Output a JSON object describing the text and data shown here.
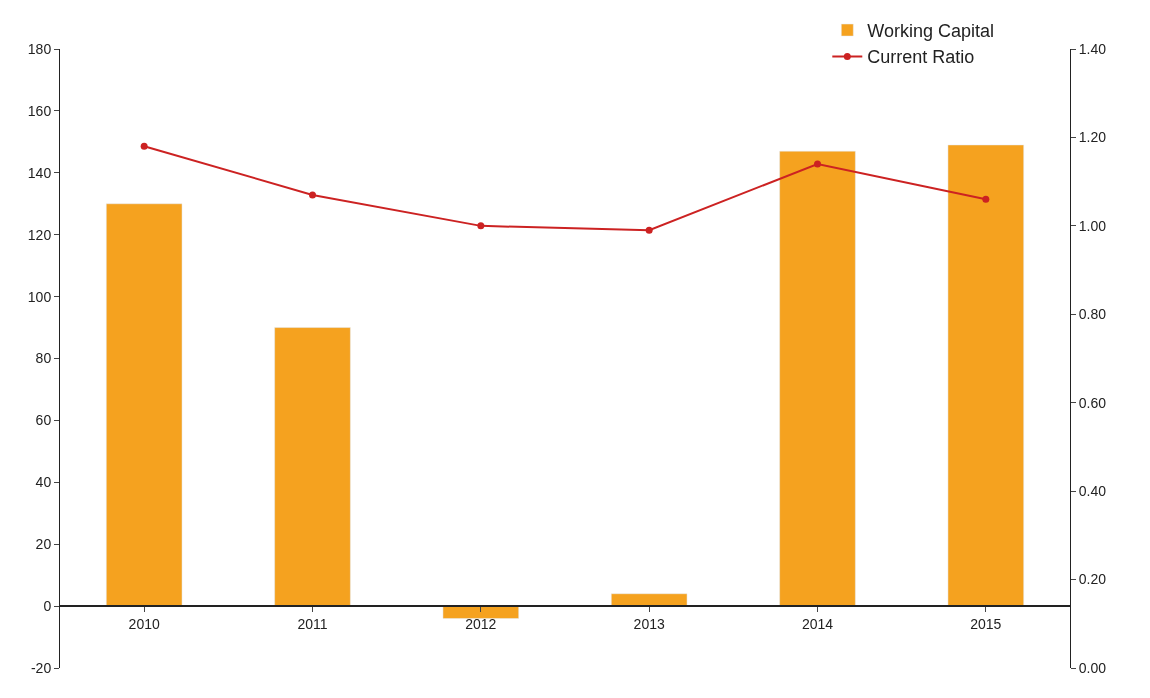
{
  "chart_data": {
    "type": "bar",
    "categories": [
      "2010",
      "2011",
      "2012",
      "2013",
      "2014",
      "2015"
    ],
    "series": [
      {
        "name": "Working Capital",
        "color": "#f5a21f",
        "values": [
          130,
          90,
          -4,
          4,
          147,
          149
        ]
      },
      {
        "name": "Current Ratio",
        "color": "#cc2222",
        "type": "line",
        "axis": "y2",
        "marker": "circle",
        "values": [
          1.18,
          1.07,
          1.0,
          0.99,
          1.14,
          1.06
        ]
      }
    ],
    "ylim": [
      -20,
      180
    ],
    "yticks": [
      -20,
      0,
      20,
      40,
      60,
      80,
      100,
      120,
      140,
      160,
      180
    ],
    "y2lim": [
      0,
      1.4
    ],
    "y2ticks": [
      {
        "value": 0,
        "label": "0.00"
      },
      {
        "value": 0.2,
        "label": "0.20"
      },
      {
        "value": 0.4,
        "label": "0.40"
      },
      {
        "value": 0.6,
        "label": "0.60"
      },
      {
        "value": 0.8,
        "label": "0.80"
      },
      {
        "value": 1.0,
        "label": "1.00"
      },
      {
        "value": 1.2,
        "label": "1.20"
      },
      {
        "value": 1.4,
        "label": "1.40"
      }
    ],
    "legend": "top right"
  }
}
